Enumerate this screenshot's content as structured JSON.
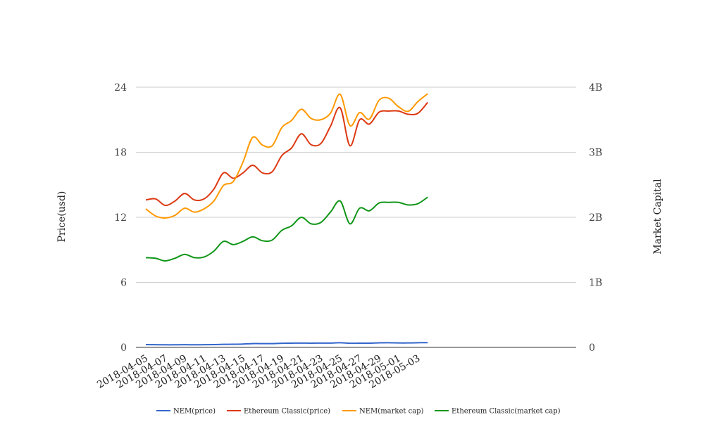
{
  "chart_data": {
    "type": "line",
    "title": "",
    "ylabel_left": "Price(usd)",
    "ylabel_right": "Market Capital",
    "y_left": {
      "min": 0,
      "max": 24,
      "ticks": [
        0,
        6,
        12,
        18,
        24
      ],
      "tick_labels": [
        "0",
        "6",
        "12",
        "18",
        "24"
      ]
    },
    "y_right": {
      "min": 0,
      "max": 4,
      "ticks": [
        0,
        1,
        2,
        3,
        4
      ],
      "tick_labels": [
        "0",
        "1B",
        "2B",
        "3B",
        "4B"
      ],
      "unit": "billion usd"
    },
    "x": [
      "2018-04-05",
      "2018-04-06",
      "2018-04-07",
      "2018-04-08",
      "2018-04-09",
      "2018-04-10",
      "2018-04-11",
      "2018-04-12",
      "2018-04-13",
      "2018-04-14",
      "2018-04-15",
      "2018-04-16",
      "2018-04-17",
      "2018-04-18",
      "2018-04-19",
      "2018-04-20",
      "2018-04-21",
      "2018-04-22",
      "2018-04-23",
      "2018-04-24",
      "2018-04-25",
      "2018-04-26",
      "2018-04-27",
      "2018-04-28",
      "2018-04-29",
      "2018-04-30",
      "2018-05-01",
      "2018-05-02",
      "2018-05-03",
      "2018-05-04"
    ],
    "x_tick_labels": [
      "2018-04-05",
      "2018-04-07",
      "2018-04-09",
      "2018-04-11",
      "2018-04-13",
      "2018-04-15",
      "2018-04-17",
      "2018-04-19",
      "2018-04-21",
      "2018-04-23",
      "2018-04-25",
      "2018-04-27",
      "2018-04-29",
      "2018-05-01",
      "2018-05-03"
    ],
    "grid": true,
    "legend_position": "bottom",
    "series": [
      {
        "name": "NEM(price)",
        "axis": "left",
        "color": "#3366cc",
        "values": [
          0.26,
          0.25,
          0.24,
          0.24,
          0.25,
          0.24,
          0.25,
          0.26,
          0.28,
          0.29,
          0.31,
          0.35,
          0.35,
          0.35,
          0.38,
          0.39,
          0.4,
          0.39,
          0.4,
          0.4,
          0.43,
          0.38,
          0.39,
          0.39,
          0.42,
          0.43,
          0.41,
          0.41,
          0.43,
          0.44
        ]
      },
      {
        "name": "Ethereum Classic(price)",
        "axis": "left",
        "color": "#dc3912",
        "values": [
          13.6,
          13.7,
          13.1,
          13.5,
          14.2,
          13.6,
          13.7,
          14.6,
          16.1,
          15.6,
          16.1,
          16.8,
          16.1,
          16.2,
          17.7,
          18.4,
          19.7,
          18.7,
          18.8,
          20.4,
          22.1,
          18.6,
          21.0,
          20.6,
          21.7,
          21.8,
          21.8,
          21.5,
          21.6,
          22.6
        ]
      },
      {
        "name": "NEM(market cap)",
        "axis": "right",
        "color": "#ff9900",
        "values": [
          2.13,
          2.02,
          1.99,
          2.03,
          2.14,
          2.08,
          2.13,
          2.25,
          2.49,
          2.55,
          2.85,
          3.23,
          3.11,
          3.1,
          3.38,
          3.49,
          3.66,
          3.52,
          3.5,
          3.6,
          3.89,
          3.41,
          3.61,
          3.51,
          3.8,
          3.83,
          3.7,
          3.63,
          3.78,
          3.9
        ]
      },
      {
        "name": "Ethereum Classic(market cap)",
        "axis": "right",
        "color": "#109618",
        "values": [
          1.38,
          1.37,
          1.33,
          1.37,
          1.43,
          1.38,
          1.39,
          1.48,
          1.63,
          1.58,
          1.63,
          1.7,
          1.64,
          1.65,
          1.8,
          1.87,
          2.0,
          1.9,
          1.92,
          2.08,
          2.25,
          1.9,
          2.14,
          2.1,
          2.22,
          2.23,
          2.23,
          2.19,
          2.21,
          2.31
        ]
      }
    ]
  }
}
